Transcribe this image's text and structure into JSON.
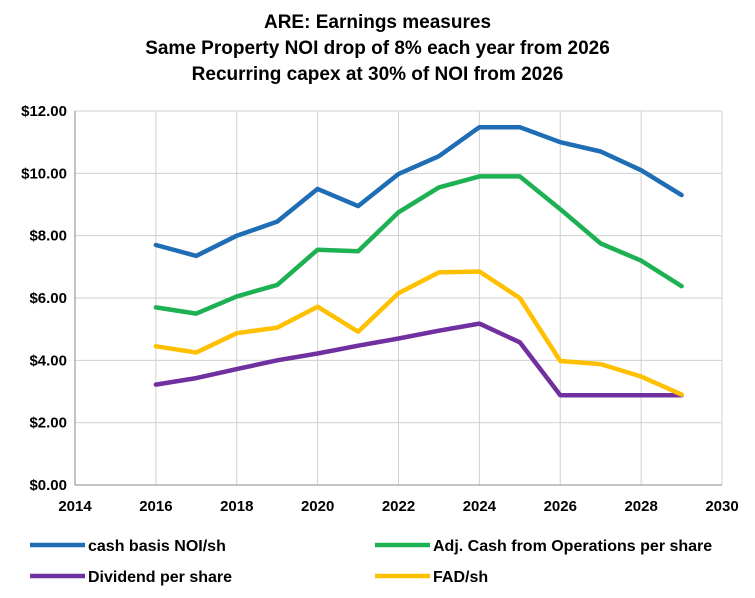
{
  "chart_data": {
    "type": "line",
    "title_lines": [
      "ARE: Earnings measures",
      "Same Property NOI drop of 8% each year from 2026",
      "Recurring capex at 30% of NOI from 2026"
    ],
    "xlabel": "",
    "ylabel": "",
    "xlim": [
      2014,
      2030
    ],
    "ylim": [
      0,
      12
    ],
    "x_ticks": [
      2014,
      2016,
      2018,
      2020,
      2022,
      2024,
      2026,
      2028,
      2030
    ],
    "x_tick_labels": [
      "2014",
      "2016",
      "2018",
      "2020",
      "2022",
      "2024",
      "2026",
      "2028",
      "2030"
    ],
    "y_ticks": [
      0,
      2,
      4,
      6,
      8,
      10,
      12
    ],
    "y_tick_labels": [
      "$0.00",
      "$2.00",
      "$4.00",
      "$6.00",
      "$8.00",
      "$10.00",
      "$12.00"
    ],
    "grid": true,
    "legend_position": "bottom",
    "x": [
      2016,
      2017,
      2018,
      2019,
      2020,
      2021,
      2022,
      2023,
      2024,
      2025,
      2026,
      2027,
      2028,
      2029
    ],
    "series": [
      {
        "name": "cash basis NOI/sh",
        "color": "#1F6DB5",
        "values": [
          7.7,
          7.35,
          8.0,
          8.45,
          9.5,
          8.95,
          9.98,
          10.55,
          11.48,
          11.48,
          11.0,
          10.7,
          10.1,
          9.3
        ]
      },
      {
        "name": "Adj. Cash from Operations per share",
        "color": "#1DB154",
        "values": [
          5.7,
          5.5,
          6.05,
          6.42,
          7.55,
          7.5,
          8.75,
          9.55,
          9.9,
          9.9,
          8.85,
          7.75,
          7.2,
          6.38
        ]
      },
      {
        "name": "Dividend per share",
        "color": "#7030A0",
        "values": [
          3.22,
          3.43,
          3.72,
          4.0,
          4.22,
          4.47,
          4.7,
          4.95,
          5.18,
          4.58,
          2.88,
          2.88,
          2.88,
          2.88
        ]
      },
      {
        "name": "FAD/sh",
        "color": "#FFC000",
        "values": [
          4.45,
          4.25,
          4.87,
          5.05,
          5.72,
          4.92,
          6.15,
          6.82,
          6.85,
          6.0,
          3.98,
          3.88,
          3.48,
          2.9
        ]
      }
    ],
    "legend_order": [
      0,
      1,
      2,
      3
    ]
  }
}
